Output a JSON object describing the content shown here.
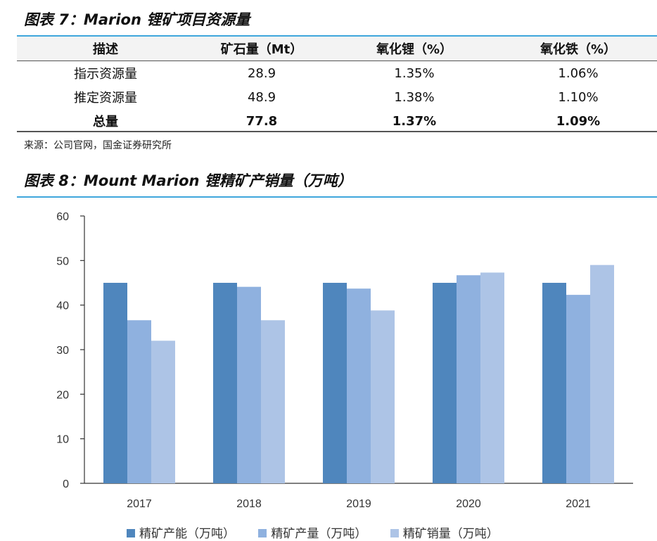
{
  "table_title": "图表 7：Marion 锂矿项目资源量",
  "table": {
    "headers": [
      "描述",
      "矿石量（Mt）",
      "氧化锂（%）",
      "氧化铁（%）"
    ],
    "rows": [
      [
        "指示资源量",
        "28.9",
        "1.35%",
        "1.06%"
      ],
      [
        "推定资源量",
        "48.9",
        "1.38%",
        "1.10%"
      ]
    ],
    "total": [
      "总量",
      "77.8",
      "1.37%",
      "1.09%"
    ]
  },
  "source": "来源：公司官网，国金证券研究所",
  "chart_title": "图表 8：Mount Marion 锂精矿产销量（万吨）",
  "chart_data": {
    "type": "bar",
    "categories": [
      "2017",
      "2018",
      "2019",
      "2020",
      "2021"
    ],
    "series": [
      {
        "name": "精矿产能（万吨）",
        "color": "#4f86bd",
        "values": [
          45,
          45,
          45,
          45,
          45
        ]
      },
      {
        "name": "精矿产量（万吨）",
        "color": "#8fb1df",
        "values": [
          36.6,
          44.1,
          43.7,
          46.7,
          42.3
        ]
      },
      {
        "name": "精矿销量（万吨）",
        "color": "#adc4e6",
        "values": [
          32,
          36.6,
          38.8,
          47.3,
          49
        ]
      }
    ],
    "ylim": [
      0,
      60
    ],
    "yticks": [
      0,
      10,
      20,
      30,
      40,
      50,
      60
    ],
    "xlabel": "",
    "ylabel": "",
    "grid": false,
    "legend": "bottom"
  }
}
